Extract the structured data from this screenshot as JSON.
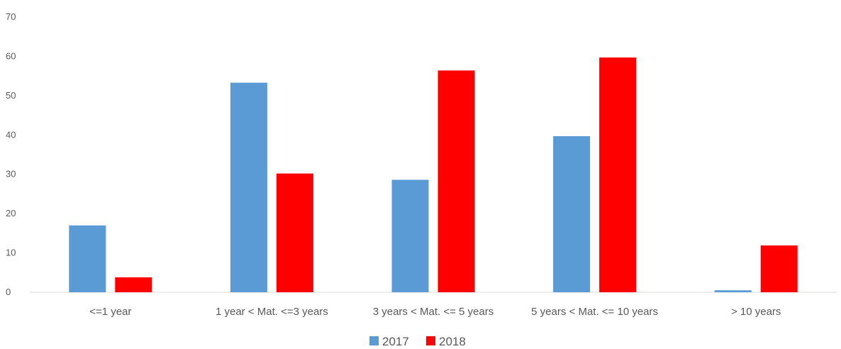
{
  "chart_data": {
    "type": "bar",
    "categories": [
      "<=1 year",
      "1 year  < Mat. <=3 years",
      "3 years < Mat. <= 5 years",
      "5 years < Mat. <= 10 years",
      "> 10 years"
    ],
    "series": [
      {
        "name": "2017",
        "color": "#5b9bd5",
        "values": [
          17,
          53.3,
          28.6,
          39.7,
          0.5
        ]
      },
      {
        "name": "2018",
        "color": "#ff0000",
        "values": [
          3.8,
          30.2,
          56.4,
          59.7,
          11.9
        ]
      }
    ],
    "yticks": [
      "0",
      "10",
      "20",
      "30",
      "40",
      "50",
      "60",
      "70"
    ],
    "ylim": [
      0,
      70
    ],
    "grid": false,
    "legend_position": "bottom"
  }
}
